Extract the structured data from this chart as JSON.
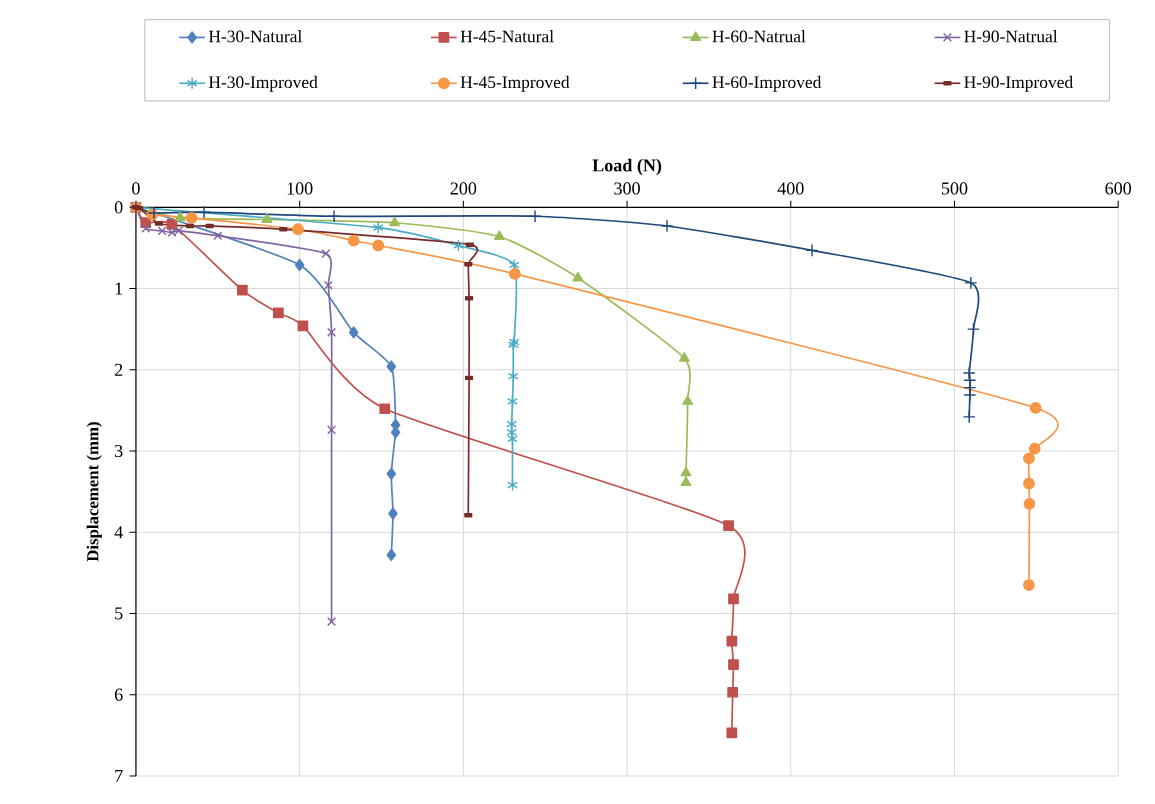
{
  "chart_data": {
    "type": "line",
    "xlabel": "Load (N)",
    "ylabel": "Displacement (mm)",
    "xlim": [
      0,
      600
    ],
    "xticks": [
      0,
      100,
      200,
      300,
      400,
      500,
      600
    ],
    "ylim": [
      7,
      0
    ],
    "yticks": [
      0,
      1,
      2,
      3,
      4,
      5,
      6,
      7
    ],
    "grid": true,
    "legend": "top",
    "series": [
      {
        "name": "H-30-Natural",
        "color": "#4f81bd",
        "marker": "diamond",
        "x": [
          0,
          100,
          133,
          156,
          158.6,
          158.6,
          156,
          157,
          156
        ],
        "values": [
          0,
          0.71,
          1.54,
          1.96,
          2.68,
          2.77,
          3.28,
          3.77,
          4.28
        ]
      },
      {
        "name": "H-45-Natural",
        "color": "#c0504d",
        "marker": "square",
        "x": [
          0,
          6,
          22,
          65,
          87,
          102,
          152,
          362,
          365,
          364,
          365,
          364.5,
          364
        ],
        "values": [
          0,
          0.19,
          0.21,
          1.02,
          1.3,
          1.46,
          2.48,
          3.92,
          4.82,
          5.34,
          5.63,
          5.97,
          6.47
        ]
      },
      {
        "name": "H-60-Natrual",
        "color": "#9bbb59",
        "marker": "triangle",
        "x": [
          0,
          27,
          80,
          158,
          222,
          270,
          335,
          337,
          336,
          336
        ],
        "values": [
          0,
          0.13,
          0.15,
          0.19,
          0.36,
          0.87,
          1.86,
          2.39,
          3.27,
          3.39
        ]
      },
      {
        "name": "H-90-Natrual",
        "color": "#8064a2",
        "marker": "cross",
        "x": [
          0,
          6,
          16,
          22,
          26,
          50,
          116,
          117.5,
          119.5,
          119.5,
          119.5
        ],
        "values": [
          0,
          0.26,
          0.29,
          0.31,
          0.29,
          0.35,
          0.57,
          0.96,
          1.54,
          2.74,
          5.1
        ]
      },
      {
        "name": "H-30-Improved",
        "color": "#4bacc6",
        "marker": "cross",
        "x": [
          0,
          148,
          197,
          231,
          231,
          230.5,
          230.5,
          230,
          229.5,
          229.5,
          230,
          230
        ],
        "values": [
          0,
          0.25,
          0.47,
          0.71,
          1.66,
          1.69,
          2.08,
          2.39,
          2.67,
          2.77,
          2.85,
          3.42
        ]
      },
      {
        "name": "H-45-Improved",
        "color": "#f79646",
        "marker": "circle",
        "x": [
          0,
          10,
          34,
          99,
          133,
          148,
          231.5,
          549.6,
          549,
          545.5,
          545.5,
          545.8,
          545.5
        ],
        "values": [
          0,
          0.09,
          0.13,
          0.27,
          0.41,
          0.47,
          0.82,
          2.47,
          2.97,
          3.09,
          3.4,
          3.65,
          4.65
        ]
      },
      {
        "name": "H-60-Improved",
        "color": "#1f497d",
        "marker": "plus",
        "x": [
          0,
          11,
          41.6,
          121,
          243.8,
          324.4,
          413,
          510,
          511.6,
          509,
          509.4,
          509.4,
          509.4,
          509
        ],
        "values": [
          0,
          0.07,
          0.06,
          0.11,
          0.11,
          0.23,
          0.53,
          0.93,
          1.5,
          2.04,
          2.13,
          2.22,
          2.31,
          2.58
        ]
      },
      {
        "name": "H-90-Improved",
        "color": "#772c2a",
        "marker": "square",
        "x": [
          0,
          2,
          14,
          33,
          45,
          90,
          204,
          203,
          203.5,
          203.5,
          203
        ],
        "values": [
          0,
          0.01,
          0.2,
          0.23,
          0.23,
          0.27,
          0.46,
          0.7,
          1.12,
          2.1,
          3.79
        ]
      }
    ]
  }
}
